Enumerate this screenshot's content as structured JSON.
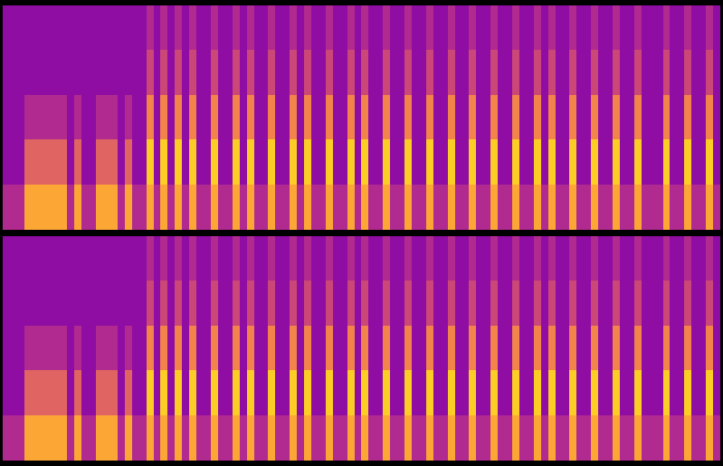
{
  "chart_data": [
    {
      "type": "heatmap",
      "tick_labels": false,
      "color_range": [
        0,
        10
      ],
      "cells": [
        [
          4,
          4,
          4,
          8,
          8,
          8,
          8,
          8,
          8,
          4,
          8,
          4,
          4,
          8,
          8,
          8,
          4,
          8,
          4,
          4,
          8,
          4,
          8,
          4,
          8,
          4,
          8,
          4,
          4,
          8,
          4,
          4,
          8,
          4,
          8,
          4,
          4,
          8,
          4,
          4,
          8,
          4,
          8,
          4,
          4,
          8,
          4,
          4,
          8,
          4,
          8,
          4,
          4,
          8,
          4,
          4,
          8,
          4,
          4,
          8,
          4,
          4,
          8,
          4,
          4,
          8,
          4,
          4,
          8,
          4,
          4,
          8,
          4,
          4,
          8,
          4,
          8,
          4,
          4,
          8,
          4,
          4,
          8,
          4,
          4,
          8,
          4,
          4,
          8,
          4,
          4,
          4,
          8,
          4,
          4,
          8,
          4,
          4,
          8,
          4
        ],
        [
          3,
          3,
          3,
          6,
          6,
          6,
          6,
          6,
          6,
          3,
          6,
          3,
          3,
          6,
          6,
          6,
          3,
          6,
          3,
          3,
          9,
          3,
          9,
          3,
          9,
          3,
          9,
          3,
          3,
          9,
          3,
          3,
          9,
          3,
          9,
          3,
          3,
          9,
          3,
          3,
          9,
          3,
          9,
          3,
          3,
          9,
          3,
          3,
          9,
          3,
          9,
          3,
          3,
          9,
          3,
          3,
          9,
          3,
          3,
          9,
          3,
          3,
          9,
          3,
          3,
          9,
          3,
          3,
          9,
          3,
          3,
          9,
          3,
          3,
          9,
          3,
          9,
          3,
          3,
          9,
          3,
          3,
          9,
          3,
          3,
          9,
          3,
          3,
          9,
          3,
          3,
          3,
          9,
          3,
          3,
          9,
          3,
          3,
          9,
          3
        ],
        [
          3,
          3,
          3,
          4,
          4,
          4,
          4,
          4,
          4,
          3,
          4,
          3,
          3,
          4,
          4,
          4,
          3,
          4,
          3,
          3,
          7,
          3,
          7,
          3,
          7,
          3,
          7,
          3,
          3,
          7,
          3,
          3,
          7,
          3,
          7,
          3,
          3,
          7,
          3,
          3,
          7,
          3,
          7,
          3,
          3,
          7,
          3,
          3,
          7,
          3,
          7,
          3,
          3,
          7,
          3,
          3,
          7,
          3,
          3,
          7,
          3,
          3,
          7,
          3,
          3,
          7,
          3,
          3,
          7,
          3,
          3,
          7,
          3,
          3,
          7,
          3,
          7,
          3,
          3,
          7,
          3,
          3,
          7,
          3,
          3,
          7,
          3,
          3,
          7,
          3,
          3,
          3,
          7,
          3,
          3,
          7,
          3,
          3,
          7,
          3
        ],
        [
          3,
          3,
          3,
          3,
          3,
          3,
          3,
          3,
          3,
          3,
          3,
          3,
          3,
          3,
          3,
          3,
          3,
          3,
          3,
          3,
          5,
          3,
          5,
          3,
          5,
          3,
          5,
          3,
          3,
          5,
          3,
          3,
          5,
          3,
          5,
          3,
          3,
          5,
          3,
          3,
          5,
          3,
          5,
          3,
          3,
          5,
          3,
          3,
          5,
          3,
          5,
          3,
          3,
          5,
          3,
          3,
          5,
          3,
          3,
          5,
          3,
          3,
          5,
          3,
          3,
          5,
          3,
          3,
          5,
          3,
          3,
          5,
          3,
          3,
          5,
          3,
          5,
          3,
          3,
          5,
          3,
          3,
          5,
          3,
          3,
          5,
          3,
          3,
          5,
          3,
          3,
          3,
          5,
          3,
          3,
          5,
          3,
          3,
          5,
          3
        ],
        [
          3,
          3,
          3,
          3,
          3,
          3,
          3,
          3,
          3,
          3,
          3,
          3,
          3,
          3,
          3,
          3,
          3,
          3,
          3,
          3,
          4,
          3,
          4,
          3,
          4,
          3,
          4,
          3,
          3,
          4,
          3,
          3,
          4,
          3,
          4,
          3,
          3,
          4,
          3,
          3,
          4,
          3,
          4,
          3,
          3,
          4,
          3,
          3,
          4,
          3,
          4,
          3,
          3,
          4,
          3,
          3,
          4,
          3,
          3,
          4,
          3,
          3,
          4,
          3,
          3,
          4,
          3,
          3,
          4,
          3,
          3,
          4,
          3,
          3,
          4,
          3,
          4,
          3,
          3,
          4,
          3,
          3,
          4,
          3,
          3,
          4,
          3,
          3,
          4,
          3,
          3,
          3,
          4,
          3,
          3,
          4,
          3,
          3,
          4,
          3
        ]
      ]
    },
    {
      "type": "heatmap",
      "tick_labels": false,
      "color_range": [
        0,
        10
      ],
      "cells": [
        [
          4,
          4,
          4,
          8,
          8,
          8,
          8,
          8,
          8,
          4,
          8,
          4,
          4,
          8,
          8,
          8,
          4,
          8,
          4,
          4,
          8,
          4,
          8,
          4,
          8,
          4,
          8,
          4,
          4,
          8,
          4,
          4,
          8,
          4,
          8,
          4,
          4,
          8,
          4,
          4,
          8,
          4,
          8,
          4,
          4,
          8,
          4,
          4,
          8,
          4,
          8,
          4,
          4,
          8,
          4,
          4,
          8,
          4,
          4,
          8,
          4,
          4,
          8,
          4,
          4,
          8,
          4,
          4,
          8,
          4,
          4,
          8,
          4,
          4,
          8,
          4,
          8,
          4,
          4,
          8,
          4,
          4,
          8,
          4,
          4,
          8,
          4,
          4,
          8,
          4,
          4,
          4,
          8,
          4,
          4,
          8,
          4,
          4,
          8,
          4
        ],
        [
          3,
          3,
          3,
          6,
          6,
          6,
          6,
          6,
          6,
          3,
          6,
          3,
          3,
          6,
          6,
          6,
          3,
          6,
          3,
          3,
          9,
          3,
          9,
          3,
          9,
          3,
          9,
          3,
          3,
          9,
          3,
          3,
          9,
          3,
          9,
          3,
          3,
          9,
          3,
          3,
          9,
          3,
          9,
          3,
          3,
          9,
          3,
          3,
          9,
          3,
          9,
          3,
          3,
          9,
          3,
          3,
          9,
          3,
          3,
          9,
          3,
          3,
          9,
          3,
          3,
          9,
          3,
          3,
          9,
          3,
          3,
          9,
          3,
          3,
          9,
          3,
          9,
          3,
          3,
          9,
          3,
          3,
          9,
          3,
          3,
          9,
          3,
          3,
          9,
          3,
          3,
          3,
          9,
          3,
          3,
          9,
          3,
          3,
          9,
          3
        ],
        [
          3,
          3,
          3,
          4,
          4,
          4,
          4,
          4,
          4,
          3,
          4,
          3,
          3,
          4,
          4,
          4,
          3,
          4,
          3,
          3,
          7,
          3,
          7,
          3,
          7,
          3,
          7,
          3,
          3,
          7,
          3,
          3,
          7,
          3,
          7,
          3,
          3,
          7,
          3,
          3,
          7,
          3,
          7,
          3,
          3,
          7,
          3,
          3,
          7,
          3,
          7,
          3,
          3,
          7,
          3,
          3,
          7,
          3,
          3,
          7,
          3,
          3,
          7,
          3,
          3,
          7,
          3,
          3,
          7,
          3,
          3,
          7,
          3,
          3,
          7,
          3,
          7,
          3,
          3,
          7,
          3,
          3,
          7,
          3,
          3,
          7,
          3,
          3,
          7,
          3,
          3,
          3,
          7,
          3,
          3,
          7,
          3,
          3,
          7,
          3
        ],
        [
          3,
          3,
          3,
          3,
          3,
          3,
          3,
          3,
          3,
          3,
          3,
          3,
          3,
          3,
          3,
          3,
          3,
          3,
          3,
          3,
          5,
          3,
          5,
          3,
          5,
          3,
          5,
          3,
          3,
          5,
          3,
          3,
          5,
          3,
          5,
          3,
          3,
          5,
          3,
          3,
          5,
          3,
          5,
          3,
          3,
          5,
          3,
          3,
          5,
          3,
          5,
          3,
          3,
          5,
          3,
          3,
          5,
          3,
          3,
          5,
          3,
          3,
          5,
          3,
          3,
          5,
          3,
          3,
          5,
          3,
          3,
          5,
          3,
          3,
          5,
          3,
          5,
          3,
          3,
          5,
          3,
          3,
          5,
          3,
          3,
          5,
          3,
          3,
          5,
          3,
          3,
          3,
          5,
          3,
          3,
          5,
          3,
          3,
          5,
          3
        ],
        [
          3,
          3,
          3,
          3,
          3,
          3,
          3,
          3,
          3,
          3,
          3,
          3,
          3,
          3,
          3,
          3,
          3,
          3,
          3,
          3,
          4,
          3,
          4,
          3,
          4,
          3,
          4,
          3,
          3,
          4,
          3,
          3,
          4,
          3,
          4,
          3,
          3,
          4,
          3,
          3,
          4,
          3,
          4,
          3,
          3,
          4,
          3,
          3,
          4,
          3,
          4,
          3,
          3,
          4,
          3,
          3,
          4,
          3,
          3,
          4,
          3,
          3,
          4,
          3,
          3,
          4,
          3,
          3,
          4,
          3,
          3,
          4,
          3,
          3,
          4,
          3,
          4,
          3,
          3,
          4,
          3,
          3,
          4,
          3,
          3,
          4,
          3,
          3,
          4,
          3,
          3,
          3,
          4,
          3,
          3,
          4,
          3,
          3,
          4,
          3
        ]
      ]
    }
  ]
}
